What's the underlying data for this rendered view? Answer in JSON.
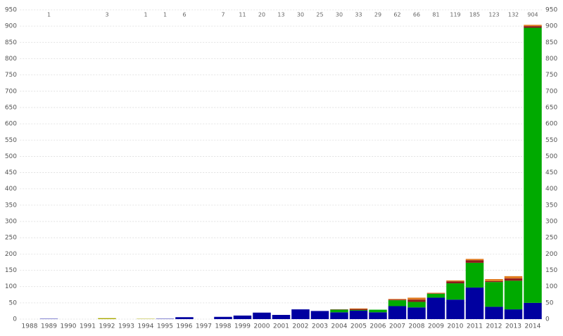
{
  "chart_data": {
    "type": "stacked-bar",
    "categories": [
      "1988",
      "1989",
      "1990",
      "1991",
      "1992",
      "1993",
      "1994",
      "1995",
      "1996",
      "1997",
      "1998",
      "1999",
      "2000",
      "2001",
      "2002",
      "2003",
      "2004",
      "2005",
      "2006",
      "2007",
      "2008",
      "2009",
      "2010",
      "2011",
      "2012",
      "2013",
      "2014"
    ],
    "totals": [
      null,
      1,
      null,
      null,
      3,
      null,
      1,
      1,
      6,
      null,
      7,
      11,
      20,
      13,
      30,
      25,
      30,
      33,
      29,
      62,
      66,
      81,
      119,
      185,
      123,
      132,
      904
    ],
    "series": [
      {
        "color": "#0000a0",
        "values": [
          0,
          1,
          0,
          0,
          0,
          0,
          0,
          1,
          6,
          0,
          7,
          11,
          20,
          13,
          30,
          25,
          21,
          26,
          21,
          40,
          36,
          66,
          60,
          97,
          38,
          30,
          50
        ]
      },
      {
        "color": "#00aa00",
        "values": [
          0,
          0,
          0,
          0,
          0,
          0,
          0,
          0,
          0,
          0,
          0,
          0,
          0,
          0,
          0,
          0,
          8,
          2,
          8,
          18,
          17,
          12,
          50,
          76,
          76,
          88,
          845
        ]
      },
      {
        "color": "#a8a800",
        "values": [
          0,
          0,
          0,
          0,
          3,
          0,
          1,
          0,
          0,
          0,
          0,
          0,
          0,
          0,
          0,
          0,
          0,
          0,
          0,
          0,
          0,
          0,
          0,
          0,
          0,
          0,
          0
        ]
      },
      {
        "color": "#8b1a1a",
        "values": [
          0,
          0,
          0,
          0,
          0,
          0,
          0,
          0,
          0,
          0,
          0,
          0,
          0,
          0,
          0,
          0,
          1,
          3,
          0,
          2,
          7,
          1,
          6,
          8,
          3,
          7,
          5
        ]
      },
      {
        "color": "#e07b20",
        "values": [
          0,
          0,
          0,
          0,
          0,
          0,
          0,
          0,
          0,
          0,
          0,
          0,
          0,
          0,
          0,
          0,
          0,
          2,
          0,
          2,
          6,
          2,
          3,
          4,
          6,
          7,
          4
        ]
      }
    ],
    "ylim": [
      0,
      950
    ],
    "yticks": [
      0,
      50,
      100,
      150,
      200,
      250,
      300,
      350,
      400,
      450,
      500,
      550,
      600,
      650,
      700,
      750,
      800,
      850,
      900,
      950
    ],
    "grid": true
  }
}
